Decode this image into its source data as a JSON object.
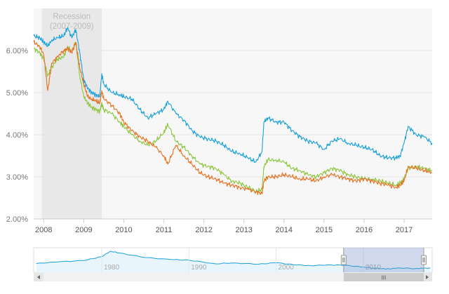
{
  "chart_data": {
    "type": "line",
    "title": "",
    "xlabel": "",
    "ylabel": "",
    "xlim": [
      2007.75,
      2017.7
    ],
    "ylim": [
      2.0,
      7.0
    ],
    "y_ticks": [
      "2.00%",
      "3.00%",
      "4.00%",
      "5.00%",
      "6.00%"
    ],
    "y_tick_values": [
      2,
      3,
      4,
      5,
      6
    ],
    "x_ticks": [
      "2008",
      "2009",
      "2010",
      "2011",
      "2012",
      "2013",
      "2014",
      "2015",
      "2016",
      "2017"
    ],
    "x_tick_values": [
      2008,
      2009,
      2010,
      2011,
      2012,
      2013,
      2014,
      2015,
      2016,
      2017
    ],
    "grid": true,
    "legend": "none",
    "annotation": {
      "label_line1": "Recession",
      "label_line2": "(2007-2009)",
      "start": 2007.95,
      "end": 2009.45,
      "color": "#e8e8e8"
    },
    "series": [
      {
        "color": "#1aa1d8",
        "x": [
          2007.75,
          2007.9,
          2008.0,
          2008.1,
          2008.2,
          2008.35,
          2008.5,
          2008.6,
          2008.7,
          2008.8,
          2008.9,
          2009.0,
          2009.1,
          2009.2,
          2009.3,
          2009.4,
          2009.45,
          2009.5,
          2009.7,
          2009.9,
          2010.0,
          2010.2,
          2010.4,
          2010.6,
          2010.8,
          2011.0,
          2011.1,
          2011.3,
          2011.5,
          2011.7,
          2011.9,
          2012.1,
          2012.3,
          2012.5,
          2012.7,
          2012.9,
          2013.1,
          2013.3,
          2013.45,
          2013.5,
          2013.6,
          2013.8,
          2014.0,
          2014.2,
          2014.4,
          2014.6,
          2014.8,
          2015.0,
          2015.2,
          2015.4,
          2015.6,
          2015.8,
          2016.0,
          2016.2,
          2016.4,
          2016.6,
          2016.8,
          2016.9,
          2017.0,
          2017.1,
          2017.3,
          2017.5,
          2017.7
        ],
        "y": [
          6.35,
          6.3,
          6.2,
          6.1,
          6.25,
          6.3,
          6.35,
          6.55,
          6.3,
          6.5,
          5.95,
          5.3,
          5.1,
          5.0,
          4.95,
          4.9,
          5.45,
          5.2,
          5.0,
          4.95,
          4.9,
          4.85,
          4.6,
          4.4,
          4.5,
          4.6,
          4.8,
          4.5,
          4.35,
          4.1,
          3.95,
          3.9,
          3.85,
          3.75,
          3.6,
          3.55,
          3.45,
          3.35,
          3.6,
          4.3,
          4.4,
          4.3,
          4.3,
          4.1,
          3.95,
          3.85,
          3.8,
          3.65,
          3.85,
          3.9,
          3.8,
          3.75,
          3.7,
          3.65,
          3.5,
          3.45,
          3.45,
          3.5,
          3.8,
          4.2,
          4.0,
          3.95,
          3.8
        ]
      },
      {
        "color": "#8dc63f",
        "x": [
          2007.75,
          2007.9,
          2008.0,
          2008.1,
          2008.2,
          2008.35,
          2008.5,
          2008.6,
          2008.7,
          2008.8,
          2008.9,
          2009.0,
          2009.1,
          2009.2,
          2009.3,
          2009.4,
          2009.45,
          2009.5,
          2009.7,
          2009.9,
          2010.0,
          2010.2,
          2010.4,
          2010.6,
          2010.8,
          2011.0,
          2011.1,
          2011.3,
          2011.5,
          2011.7,
          2011.9,
          2012.1,
          2012.3,
          2012.5,
          2012.7,
          2012.9,
          2013.1,
          2013.3,
          2013.45,
          2013.5,
          2013.6,
          2013.8,
          2014.0,
          2014.2,
          2014.4,
          2014.6,
          2014.8,
          2015.0,
          2015.2,
          2015.4,
          2015.6,
          2015.8,
          2016.0,
          2016.2,
          2016.4,
          2016.6,
          2016.8,
          2016.9,
          2017.0,
          2017.1,
          2017.3,
          2017.5,
          2017.7
        ],
        "y": [
          6.05,
          5.95,
          5.8,
          5.4,
          5.6,
          5.8,
          5.85,
          6.1,
          5.95,
          6.2,
          5.4,
          4.9,
          4.75,
          4.65,
          4.6,
          4.55,
          4.75,
          4.6,
          4.5,
          4.3,
          4.2,
          4.0,
          3.85,
          3.75,
          3.85,
          4.05,
          4.25,
          3.85,
          3.7,
          3.5,
          3.3,
          3.25,
          3.2,
          3.05,
          2.9,
          2.85,
          2.75,
          2.65,
          2.7,
          3.25,
          3.4,
          3.4,
          3.35,
          3.2,
          3.15,
          3.05,
          3.0,
          3.1,
          3.2,
          3.15,
          3.05,
          3.0,
          2.95,
          2.95,
          2.9,
          2.85,
          2.8,
          2.85,
          2.95,
          3.2,
          3.25,
          3.2,
          3.15
        ]
      },
      {
        "color": "#e8701f",
        "x": [
          2007.75,
          2007.9,
          2008.0,
          2008.1,
          2008.2,
          2008.35,
          2008.5,
          2008.6,
          2008.7,
          2008.8,
          2008.9,
          2009.0,
          2009.1,
          2009.2,
          2009.3,
          2009.4,
          2009.45,
          2009.5,
          2009.7,
          2009.9,
          2010.0,
          2010.2,
          2010.4,
          2010.6,
          2010.8,
          2011.0,
          2011.1,
          2011.3,
          2011.5,
          2011.7,
          2011.9,
          2012.1,
          2012.3,
          2012.5,
          2012.7,
          2012.9,
          2013.1,
          2013.3,
          2013.45,
          2013.5,
          2013.6,
          2013.8,
          2014.0,
          2014.2,
          2014.4,
          2014.6,
          2014.8,
          2015.0,
          2015.2,
          2015.4,
          2015.6,
          2015.8,
          2016.0,
          2016.2,
          2016.4,
          2016.6,
          2016.8,
          2016.9,
          2017.0,
          2017.1,
          2017.3,
          2017.5,
          2017.7
        ],
        "y": [
          6.2,
          6.1,
          5.9,
          5.05,
          5.7,
          5.85,
          6.0,
          6.05,
          5.95,
          6.2,
          5.6,
          5.2,
          4.9,
          4.85,
          4.8,
          4.75,
          5.05,
          4.85,
          4.7,
          4.5,
          4.3,
          4.1,
          3.95,
          3.85,
          3.7,
          3.5,
          3.3,
          3.75,
          3.5,
          3.3,
          3.1,
          3.0,
          2.95,
          2.85,
          2.8,
          2.75,
          2.7,
          2.65,
          2.6,
          2.9,
          3.0,
          3.0,
          3.05,
          3.0,
          2.95,
          2.95,
          2.9,
          3.0,
          3.05,
          3.0,
          2.95,
          2.9,
          2.95,
          2.9,
          2.85,
          2.8,
          2.75,
          2.8,
          2.9,
          3.25,
          3.2,
          3.15,
          3.1
        ]
      }
    ]
  },
  "navigator": {
    "x_ticks": [
      "1980",
      "1990",
      "2000",
      "2010"
    ],
    "selection": [
      2007.75,
      2017.7
    ],
    "grip_label": "III"
  }
}
